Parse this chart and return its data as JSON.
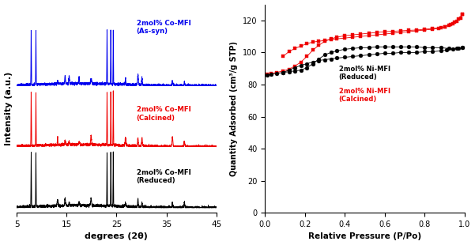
{
  "xrd_xlabel": "degrees (2θ)",
  "xrd_ylabel": "Intensity (a.u.)",
  "xrd_xlim": [
    5,
    45
  ],
  "xrd_xticks": [
    5,
    15,
    25,
    35,
    45
  ],
  "sorption_xlabel": "Relative Pressure (P/Po)",
  "sorption_ylabel": "Quantity Adsorbed (cm³/g STP)",
  "sorption_xlim": [
    0.0,
    1.0
  ],
  "sorption_ylim": [
    0,
    130
  ],
  "sorption_yticks": [
    0,
    20,
    40,
    60,
    80,
    100,
    120
  ],
  "label_assyn": "2mol% Co-MFI\n(As-syn)",
  "label_calcined_xrd": "2mol% Co-MFI\n(Calcined)",
  "label_reduced_xrd": "2mol% Co-MFI\n(Reduced)",
  "label_reduced_sorp": "2mol% Ni-MFI\n(Reduced)",
  "label_calcined_sorp": "2mol% Ni-MFI\n(Calcined)",
  "color_blue": "#0000EE",
  "color_red": "#EE0000",
  "color_black": "#000000",
  "xrd_peaks_main": [
    7.9,
    8.85,
    23.1,
    23.85,
    24.35
  ],
  "xrd_peaks_minor": [
    13.2,
    14.7,
    15.5,
    17.5,
    19.9,
    26.8,
    29.3,
    30.1,
    36.2,
    38.6
  ],
  "sorption_red_adsorption_x": [
    0.01,
    0.03,
    0.06,
    0.09,
    0.12,
    0.15,
    0.18,
    0.21,
    0.24,
    0.27,
    0.3,
    0.33,
    0.36,
    0.4,
    0.44,
    0.48,
    0.52,
    0.56,
    0.6,
    0.64,
    0.68,
    0.72,
    0.76,
    0.8,
    0.84,
    0.88,
    0.9,
    0.92,
    0.94,
    0.96,
    0.98,
    0.99
  ],
  "sorption_red_adsorption_y": [
    86.5,
    87.0,
    87.5,
    88.5,
    89.5,
    91.5,
    94.0,
    97.5,
    101.5,
    104.5,
    107.0,
    108.5,
    109.5,
    110.5,
    111.0,
    111.5,
    112.0,
    112.5,
    113.0,
    113.2,
    113.5,
    113.8,
    114.0,
    114.5,
    115.0,
    115.5,
    116.0,
    117.0,
    118.0,
    119.5,
    121.5,
    124.0
  ],
  "sorption_red_desorption_x": [
    0.99,
    0.97,
    0.95,
    0.93,
    0.9,
    0.87,
    0.84,
    0.8,
    0.76,
    0.72,
    0.68,
    0.64,
    0.6,
    0.56,
    0.52,
    0.48,
    0.44,
    0.4,
    0.36,
    0.33,
    0.3,
    0.27,
    0.24,
    0.21,
    0.18,
    0.15,
    0.12,
    0.09
  ],
  "sorption_red_desorption_y": [
    124.0,
    121.0,
    119.0,
    117.5,
    116.0,
    115.0,
    114.5,
    114.0,
    113.5,
    113.0,
    112.5,
    112.0,
    111.5,
    111.0,
    110.5,
    110.0,
    109.5,
    109.0,
    108.5,
    108.0,
    107.5,
    107.0,
    106.5,
    105.5,
    104.0,
    102.5,
    100.5,
    97.5
  ],
  "sorption_black_adsorption_x": [
    0.01,
    0.03,
    0.06,
    0.09,
    0.12,
    0.15,
    0.18,
    0.21,
    0.24,
    0.27,
    0.3,
    0.33,
    0.36,
    0.4,
    0.44,
    0.48,
    0.52,
    0.56,
    0.6,
    0.64,
    0.68,
    0.72,
    0.76,
    0.8,
    0.84,
    0.88,
    0.92,
    0.96,
    0.99
  ],
  "sorption_black_adsorption_y": [
    86.0,
    86.5,
    87.0,
    87.5,
    88.0,
    88.5,
    89.0,
    90.5,
    93.0,
    96.0,
    98.5,
    100.0,
    101.0,
    102.0,
    102.5,
    103.0,
    103.0,
    103.5,
    103.5,
    103.5,
    103.5,
    103.5,
    103.5,
    103.0,
    103.0,
    103.0,
    102.5,
    102.5,
    103.0
  ],
  "sorption_black_desorption_x": [
    0.99,
    0.97,
    0.94,
    0.91,
    0.88,
    0.84,
    0.8,
    0.76,
    0.72,
    0.68,
    0.64,
    0.6,
    0.56,
    0.52,
    0.48,
    0.44,
    0.4,
    0.36,
    0.33,
    0.3,
    0.27,
    0.24,
    0.21,
    0.18,
    0.15,
    0.12,
    0.09
  ],
  "sorption_black_desorption_y": [
    103.0,
    102.5,
    102.0,
    101.5,
    101.0,
    100.5,
    100.5,
    100.0,
    100.0,
    100.0,
    99.5,
    99.5,
    99.0,
    98.5,
    98.0,
    97.5,
    97.0,
    96.5,
    96.0,
    95.5,
    95.0,
    94.0,
    93.0,
    92.0,
    90.5,
    89.0,
    87.5
  ]
}
